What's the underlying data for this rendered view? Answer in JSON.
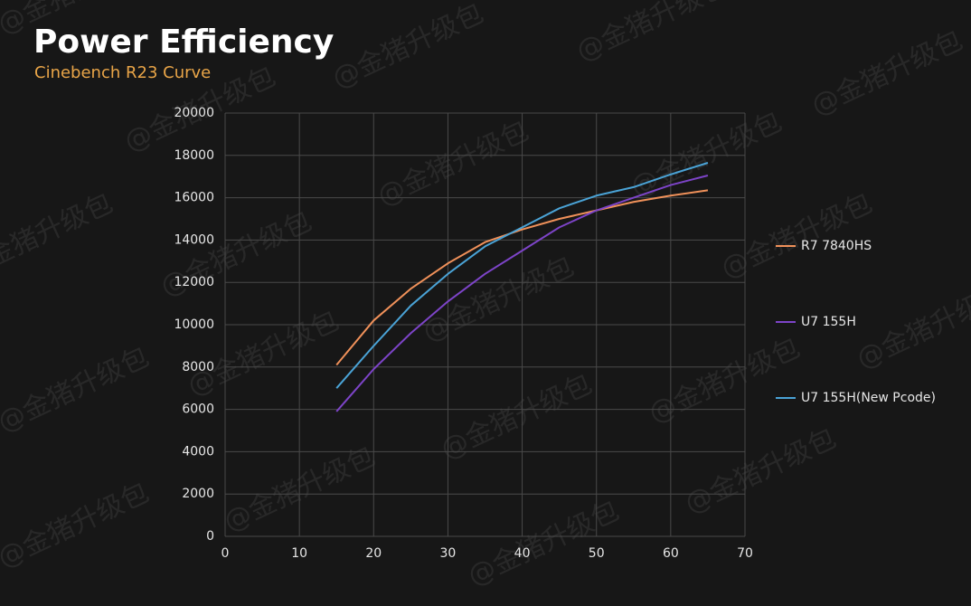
{
  "chart_data": {
    "type": "line",
    "title": "Power Efficiency",
    "subtitle": "Cinebench R23 Curve",
    "watermark": "@金猪升级包",
    "x": [
      15,
      20,
      25,
      30,
      35,
      40,
      45,
      50,
      55,
      60,
      65
    ],
    "series": [
      {
        "name": "R7 7840HS",
        "color": "#f0915a",
        "values": [
          8100,
          10200,
          11700,
          12900,
          13900,
          14500,
          15000,
          15400,
          15800,
          16100,
          16350
        ]
      },
      {
        "name": "U7 155H",
        "color": "#7d44c8",
        "values": [
          5900,
          7900,
          9600,
          11100,
          12400,
          13500,
          14600,
          15400,
          16000,
          16600,
          17050
        ]
      },
      {
        "name": "U7 155H(New Pcode)",
        "color": "#4aa3d6",
        "values": [
          7000,
          9000,
          10900,
          12400,
          13700,
          14600,
          15500,
          16100,
          16500,
          17100,
          17650
        ]
      }
    ],
    "xlim": [
      0,
      70
    ],
    "xticks": [
      0,
      10,
      20,
      30,
      40,
      50,
      60,
      70
    ],
    "ylim": [
      0,
      20000
    ],
    "yticks": [
      0,
      2000,
      4000,
      6000,
      8000,
      10000,
      12000,
      14000,
      16000,
      18000,
      20000
    ],
    "grid": true,
    "legend": "right"
  }
}
